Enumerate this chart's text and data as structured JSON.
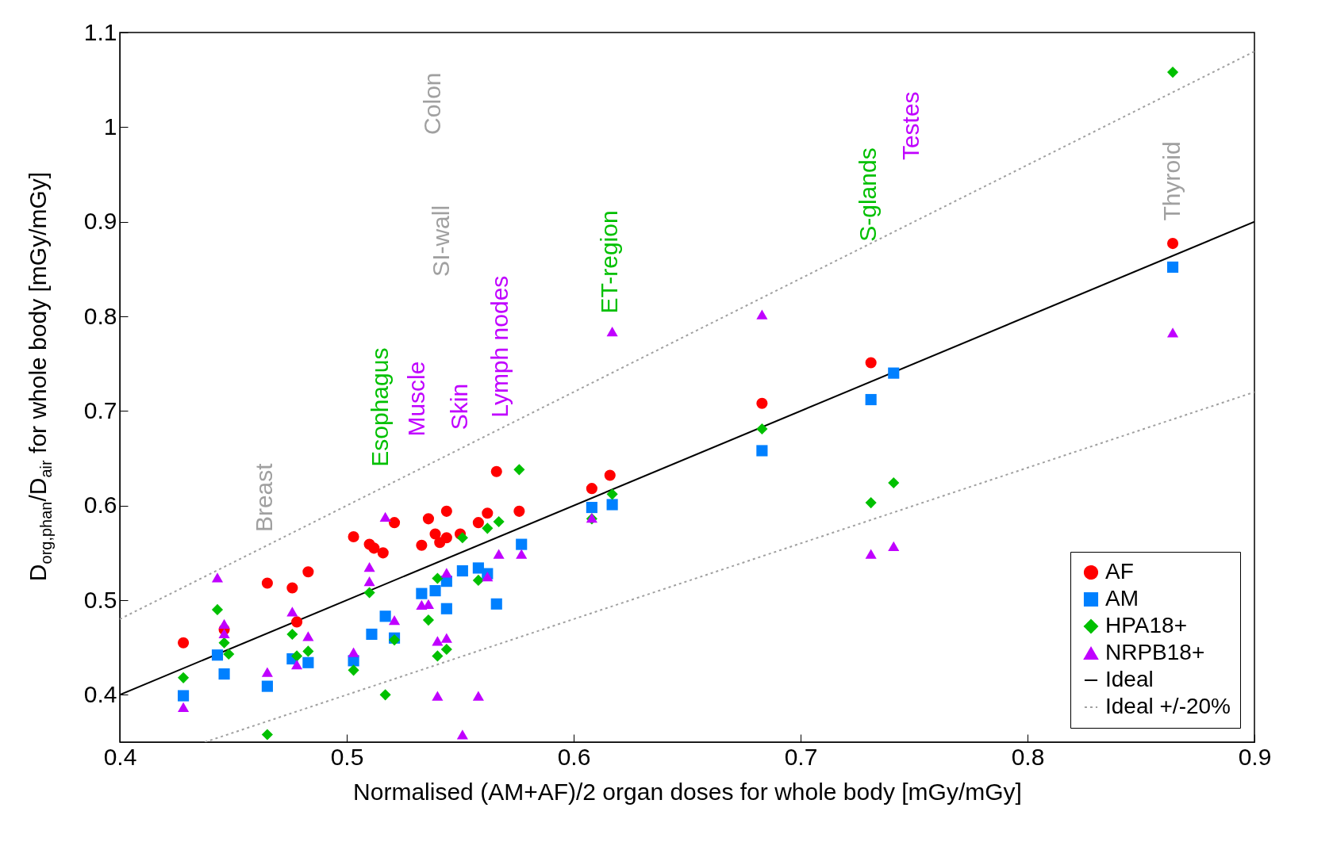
{
  "chart_data": {
    "type": "scatter",
    "xlabel": "Normalised (AM+AF)/2 organ doses for whole body [mGy/mGy]",
    "ylabel": "D$_{org,phan}$/D$_{air}$ for whole body [mGy/mGy]",
    "xlim": [
      0.4,
      0.9
    ],
    "ylim": [
      0.35,
      1.1
    ],
    "xticks": [
      0.4,
      0.5,
      0.6,
      0.7,
      0.8,
      0.9
    ],
    "yticks": [
      0.4,
      0.5,
      0.6,
      0.7,
      0.8,
      0.9,
      1,
      1.1
    ],
    "grid": false,
    "legend": "bottom right",
    "series": [
      {
        "name": "AF",
        "color": "#ff0000",
        "marker": "circle",
        "x": [
          0.428,
          0.446,
          0.465,
          0.476,
          0.478,
          0.483,
          0.503,
          0.51,
          0.512,
          0.516,
          0.521,
          0.533,
          0.536,
          0.539,
          0.541,
          0.544,
          0.544,
          0.55,
          0.558,
          0.562,
          0.566,
          0.576,
          0.608,
          0.616,
          0.683,
          0.731,
          0.864
        ],
        "values": [
          0.455,
          0.469,
          0.518,
          0.513,
          0.477,
          0.53,
          0.567,
          0.559,
          0.555,
          0.55,
          0.582,
          0.558,
          0.586,
          0.57,
          0.561,
          0.594,
          0.566,
          0.57,
          0.582,
          0.592,
          0.636,
          0.594,
          0.618,
          0.632,
          0.708,
          0.751,
          0.877
        ]
      },
      {
        "name": "AM",
        "color": "#0080ff",
        "marker": "square",
        "x": [
          0.428,
          0.443,
          0.446,
          0.465,
          0.476,
          0.483,
          0.503,
          0.511,
          0.517,
          0.521,
          0.533,
          0.539,
          0.544,
          0.544,
          0.551,
          0.558,
          0.562,
          0.566,
          0.577,
          0.608,
          0.617,
          0.683,
          0.731,
          0.741,
          0.864
        ],
        "values": [
          0.399,
          0.442,
          0.422,
          0.409,
          0.438,
          0.434,
          0.436,
          0.464,
          0.483,
          0.46,
          0.507,
          0.51,
          0.491,
          0.52,
          0.531,
          0.534,
          0.528,
          0.496,
          0.559,
          0.598,
          0.601,
          0.658,
          0.712,
          0.74,
          0.852
        ]
      },
      {
        "name": "HPA18+",
        "color": "#00c000",
        "marker": "diamond",
        "x": [
          0.428,
          0.443,
          0.446,
          0.448,
          0.465,
          0.476,
          0.478,
          0.483,
          0.503,
          0.51,
          0.517,
          0.521,
          0.536,
          0.54,
          0.54,
          0.544,
          0.551,
          0.558,
          0.562,
          0.567,
          0.576,
          0.608,
          0.617,
          0.683,
          0.731,
          0.741,
          0.864
        ],
        "values": [
          0.418,
          0.49,
          0.455,
          0.443,
          0.358,
          0.464,
          0.441,
          0.446,
          0.426,
          0.508,
          0.4,
          0.458,
          0.479,
          0.523,
          0.441,
          0.448,
          0.566,
          0.521,
          0.576,
          0.583,
          0.638,
          0.586,
          0.612,
          0.681,
          0.603,
          0.624,
          1.058
        ]
      },
      {
        "name": "NRPB18+",
        "color": "#c000ff",
        "marker": "triangle",
        "x": [
          0.428,
          0.443,
          0.446,
          0.446,
          0.465,
          0.476,
          0.478,
          0.483,
          0.503,
          0.51,
          0.51,
          0.517,
          0.521,
          0.533,
          0.536,
          0.54,
          0.544,
          0.54,
          0.551,
          0.558,
          0.544,
          0.562,
          0.567,
          0.577,
          0.608,
          0.617,
          0.683,
          0.731,
          0.741,
          0.864
        ],
        "values": [
          0.387,
          0.524,
          0.475,
          0.465,
          0.424,
          0.488,
          0.432,
          0.462,
          0.445,
          0.535,
          0.52,
          0.588,
          0.479,
          0.495,
          0.496,
          0.457,
          0.46,
          0.399,
          0.358,
          0.399,
          0.529,
          0.525,
          0.549,
          0.549,
          0.587,
          0.784,
          0.802,
          0.549,
          0.557,
          0.783
        ]
      },
      {
        "name": "Ideal",
        "type": "line",
        "color": "#000000",
        "line_style": "solid",
        "x": [
          0.4,
          0.9
        ],
        "values": [
          0.4,
          0.9
        ]
      },
      {
        "name": "Ideal +/-20%",
        "type": "line",
        "color": "#a0a0a0",
        "line_style": "dotted",
        "x": [
          0.4,
          0.9
        ],
        "values": [
          0.48,
          1.08
        ]
      },
      {
        "type": "line",
        "color": "#a0a0a0",
        "line_style": "dotted",
        "x": [
          0.4375,
          0.9
        ],
        "values": [
          0.35,
          0.72
        ]
      }
    ],
    "annotations": [
      "Breast",
      "Esophagus",
      "Muscle",
      "Skin",
      "Lymph nodes",
      "SI-wall",
      "Colon",
      "ET-region",
      "S-glands",
      "Testes",
      "Thyroid"
    ]
  }
}
